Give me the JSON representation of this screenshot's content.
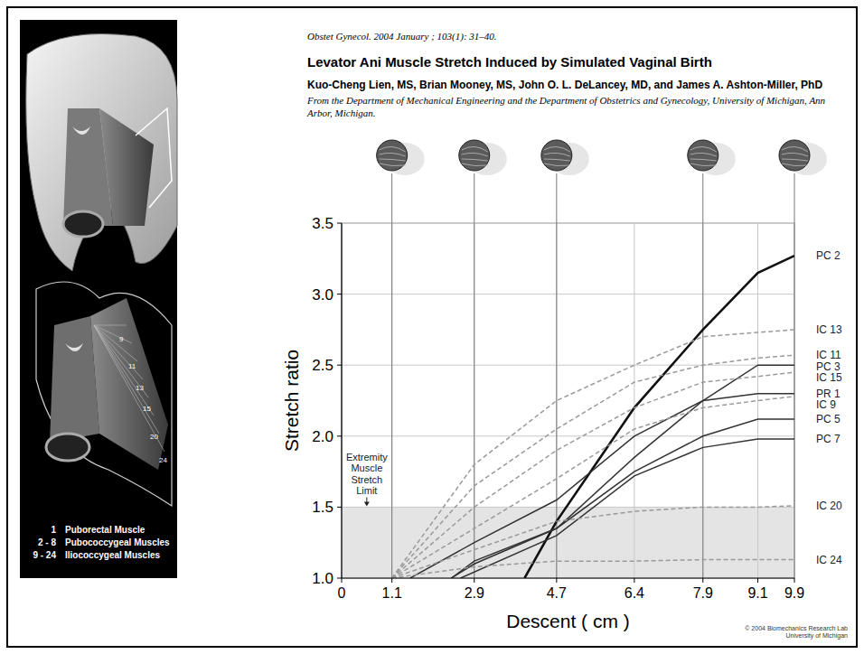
{
  "header": {
    "citation": "Obstet Gynecol. 2004 January ; 103(1): 31–40.",
    "title": "Levator Ani Muscle Stretch Induced by Simulated Vaginal Birth",
    "authors": "Kuo-Cheng Lien, MS, Brian Mooney, MS, John O. L. DeLancey, MD, and James A. Ashton-Miller, PhD",
    "affiliation": "From the Department of Mechanical Engineering and the Department of Obstetrics and Gynecology, University of Michigan, Ann Arbor, Michigan."
  },
  "figure": {
    "legend": [
      {
        "number": "1",
        "label": "Puborectal Muscle"
      },
      {
        "number": "2 - 8",
        "label": "Pubococcygeal Muscles"
      },
      {
        "number": "9 - 24",
        "label": "Iliococcygeal Muscles"
      }
    ],
    "fan_numbers": [
      "9",
      "11",
      "13",
      "15",
      "20",
      "24"
    ]
  },
  "footer": [
    "© 2004 Biomechanics Research Lab",
    "University of Michigan"
  ],
  "chart_data": {
    "type": "line",
    "x_label": "Descent ( cm )",
    "y_label": "Stretch ratio",
    "annotation": "Extremity Muscle Stretch Limit",
    "stretch_limit": 1.5,
    "head_positions": [
      1.1,
      2.9,
      4.7,
      7.9,
      9.9
    ],
    "xlim": [
      0,
      9.9
    ],
    "ylim": [
      1,
      3.5
    ],
    "xticks": [
      0,
      1.1,
      2.9,
      4.7,
      6.4,
      7.9,
      9.1,
      9.9
    ],
    "yticks": [
      {
        "value": 1,
        "label": "1.0"
      },
      1.5,
      {
        "value": 2,
        "label": "2.0"
      },
      2.5,
      {
        "value": 3,
        "label": "3.0"
      },
      3.5
    ],
    "grid": true,
    "series": [
      {
        "name": "PC 2",
        "color": "#111111",
        "line_style": "solid",
        "x": [
          4.0,
          4.7,
          6.4,
          7.9,
          9.1,
          9.9
        ],
        "values": [
          1.0,
          1.4,
          2.2,
          2.75,
          3.15,
          3.27
        ]
      },
      {
        "name": "IC 13",
        "color": "#9a9a9a",
        "line_style": "dashed",
        "x": [
          1.1,
          2.9,
          4.7,
          6.4,
          7.9,
          9.1,
          9.9
        ],
        "values": [
          1.0,
          1.8,
          2.25,
          2.5,
          2.7,
          2.73,
          2.75
        ]
      },
      {
        "name": "IC 11",
        "color": "#9a9a9a",
        "line_style": "dashed",
        "x": [
          1.1,
          2.9,
          4.7,
          6.4,
          7.9,
          9.1,
          9.9
        ],
        "values": [
          1.0,
          1.65,
          2.05,
          2.38,
          2.5,
          2.55,
          2.57
        ]
      },
      {
        "name": "PC 3",
        "color": "#333333",
        "line_style": "solid",
        "x": [
          2.4,
          2.9,
          4.7,
          6.4,
          7.9,
          9.1,
          9.9
        ],
        "values": [
          1.0,
          1.12,
          1.35,
          1.85,
          2.25,
          2.5,
          2.5
        ]
      },
      {
        "name": "IC 15",
        "color": "#9a9a9a",
        "line_style": "dashed",
        "x": [
          1.1,
          2.9,
          4.7,
          6.4,
          7.9,
          9.1,
          9.9
        ],
        "values": [
          1.0,
          1.5,
          1.9,
          2.2,
          2.38,
          2.42,
          2.45
        ]
      },
      {
        "name": "PR 1",
        "color": "#333333",
        "line_style": "solid",
        "x": [
          1.5,
          2.9,
          4.7,
          6.4,
          7.9,
          9.1,
          9.9
        ],
        "values": [
          1.0,
          1.25,
          1.55,
          2.0,
          2.25,
          2.3,
          2.3
        ]
      },
      {
        "name": "IC 9",
        "color": "#9a9a9a",
        "line_style": "dashed",
        "x": [
          1.1,
          2.9,
          4.7,
          6.4,
          7.9,
          9.1,
          9.9
        ],
        "values": [
          1.0,
          1.35,
          1.7,
          2.05,
          2.2,
          2.25,
          2.28
        ]
      },
      {
        "name": "PC 5",
        "color": "#333333",
        "line_style": "solid",
        "x": [
          2.4,
          2.9,
          4.7,
          6.4,
          7.9,
          9.1,
          9.9
        ],
        "values": [
          1.0,
          1.1,
          1.35,
          1.75,
          2.0,
          2.12,
          2.12
        ]
      },
      {
        "name": "PC 7",
        "color": "#333333",
        "line_style": "solid",
        "x": [
          2.6,
          4.7,
          6.4,
          7.9,
          9.1,
          9.9
        ],
        "values": [
          1.0,
          1.3,
          1.72,
          1.92,
          1.98,
          1.98
        ]
      },
      {
        "name": "IC 20",
        "color": "#9a9a9a",
        "line_style": "dashed",
        "x": [
          1.1,
          2.9,
          4.7,
          6.4,
          7.9,
          9.1,
          9.9
        ],
        "values": [
          1.0,
          1.2,
          1.4,
          1.47,
          1.5,
          1.5,
          1.51
        ]
      },
      {
        "name": "IC 24",
        "color": "#9a9a9a",
        "line_style": "dashed",
        "x": [
          1.1,
          2.9,
          4.7,
          6.4,
          7.9,
          9.1,
          9.9
        ],
        "values": [
          1.0,
          1.08,
          1.12,
          1.12,
          1.13,
          1.13,
          1.13
        ]
      }
    ]
  }
}
